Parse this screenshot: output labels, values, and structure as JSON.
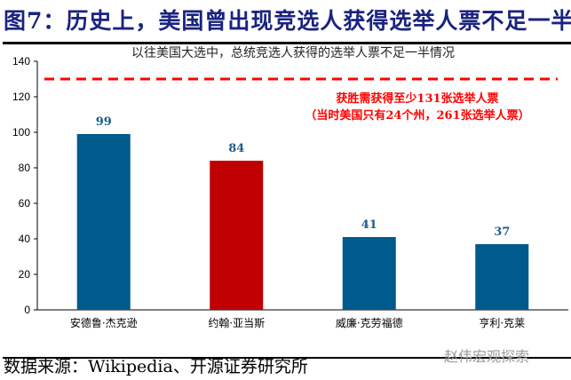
{
  "title": "图7：历史上，美国曾出现竞选人获得选举人票不足一半",
  "source": "数据来源：Wikipedia、开源证券研究所",
  "watermark": "赵伟宏观探索",
  "chart_data": {
    "type": "bar",
    "title": "以往美国大选中，总统竞选人获得的选举人票不足一半情况",
    "categories": [
      "安德鲁·杰克逊",
      "约翰·亚当斯",
      "威廉·克劳福德",
      "亨利·克莱"
    ],
    "values": [
      99,
      84,
      41,
      37
    ],
    "bar_colors": [
      "#005a8c",
      "#c00000",
      "#005a8c",
      "#005a8c"
    ],
    "label_color": "#1f5d8a",
    "ylim": [
      0,
      140
    ],
    "yticks": [
      0,
      20,
      40,
      60,
      80,
      100,
      120,
      140
    ],
    "grid": false,
    "reference_line": {
      "value": 130,
      "color": "#ff0000",
      "style": "dashed"
    },
    "annotation": [
      "获胜需获得至少131张选举人票",
      "（当时美国只有24个州，261张选举人票）"
    ],
    "annotation_color": "#ff0000"
  }
}
